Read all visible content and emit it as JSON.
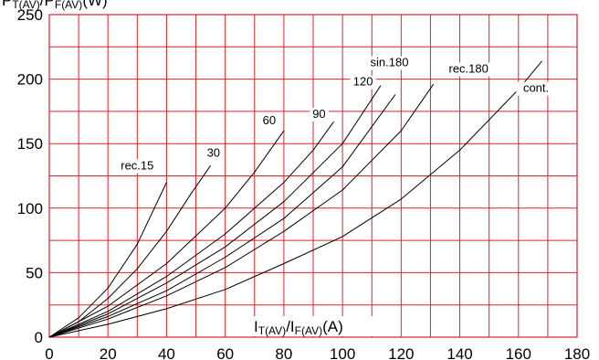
{
  "chart_data": {
    "type": "line",
    "title": "",
    "xlabel": {
      "main1": "I",
      "sub1": "T(AV)",
      "mid": "/I",
      "sub2": "F(AV)",
      "unit": "(A)"
    },
    "ylabel": {
      "main1": "P",
      "sub1": "T(AV)",
      "mid": "/P",
      "sub2": "F(AV)",
      "unit": "(W)"
    },
    "xlim": [
      0,
      180
    ],
    "ylim": [
      0,
      250
    ],
    "x_ticks": [
      "0",
      "20",
      "40",
      "60",
      "80",
      "100",
      "120",
      "140",
      "160",
      "180"
    ],
    "y_ticks": [
      "0",
      "50",
      "100",
      "150",
      "200",
      "250"
    ],
    "grid": true,
    "grid_color": "#e0202a",
    "series": [
      {
        "name": "rec.15",
        "x": [
          0,
          10,
          20,
          30,
          40
        ],
        "y": [
          0,
          15,
          38,
          72,
          120
        ]
      },
      {
        "name": "30",
        "x": [
          0,
          10,
          20,
          30,
          40,
          48,
          55
        ],
        "y": [
          0,
          12,
          30,
          53,
          82,
          110,
          133
        ]
      },
      {
        "name": "60",
        "x": [
          0,
          20,
          40,
          60,
          70,
          80
        ],
        "y": [
          0,
          24,
          57,
          100,
          128,
          160
        ]
      },
      {
        "name": "90",
        "x": [
          0,
          20,
          40,
          60,
          80,
          90,
          97
        ],
        "y": [
          0,
          20,
          47,
          80,
          120,
          145,
          167
        ]
      },
      {
        "name": "120",
        "x": [
          0,
          20,
          40,
          60,
          80,
          100,
          113
        ],
        "y": [
          0,
          18,
          42,
          70,
          105,
          150,
          195
        ]
      },
      {
        "name": "sin.180",
        "x": [
          0,
          20,
          40,
          60,
          80,
          100,
          118
        ],
        "y": [
          0,
          16,
          36,
          62,
          92,
          132,
          188
        ]
      },
      {
        "name": "rec.180",
        "x": [
          0,
          20,
          40,
          60,
          80,
          100,
          120,
          131
        ],
        "y": [
          0,
          14,
          32,
          54,
          82,
          114,
          160,
          196
        ]
      },
      {
        "name": "cont.",
        "x": [
          0,
          20,
          40,
          60,
          80,
          100,
          120,
          140,
          160,
          168
        ],
        "y": [
          0,
          10,
          22,
          37,
          57,
          78,
          107,
          145,
          192,
          214
        ]
      }
    ],
    "labels": [
      {
        "text": "rec.15",
        "x": 30,
        "y": 130
      },
      {
        "text": "30",
        "x": 56,
        "y": 140
      },
      {
        "text": "60",
        "x": 75,
        "y": 165
      },
      {
        "text": "90",
        "x": 92,
        "y": 170
      },
      {
        "text": "120",
        "x": 107,
        "y": 195
      },
      {
        "text": "sin.180",
        "x": 116,
        "y": 210
      },
      {
        "text": "rec.180",
        "x": 143,
        "y": 205
      },
      {
        "text": "cont.",
        "x": 166,
        "y": 190
      }
    ]
  }
}
